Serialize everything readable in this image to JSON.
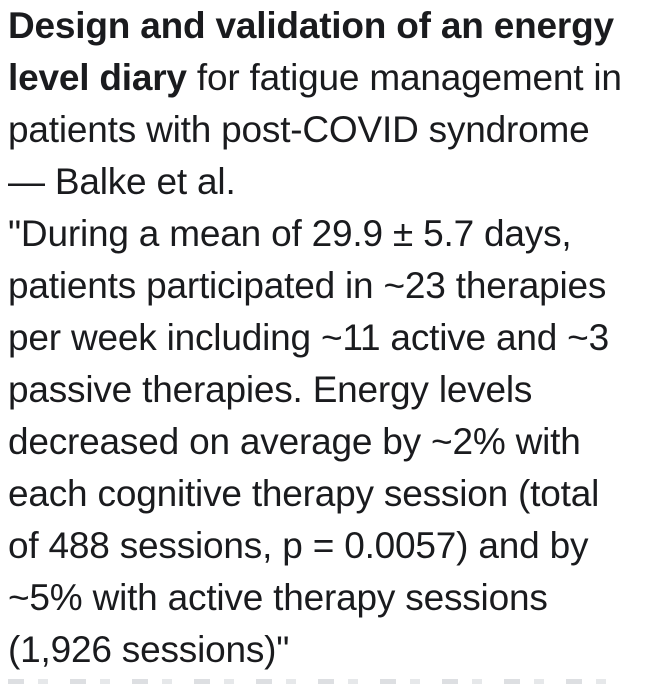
{
  "page": {
    "background_color": "#ffffff",
    "text_color": "#1a1b1e"
  },
  "article": {
    "title_bold": "Design and validation of an energy level diary",
    "title_rest": " for fatigue management in patients with post-COVID syndrome",
    "authors": "— Balke et al.",
    "quote": "\"During a mean of 29.9 ± 5.7 days, patients participated in ~23 therapies per week including ~11 active and ~3 passive therapies. Energy levels decreased on average by ~2% with each cognitive therapy session (total of 488 sessions, p = 0.0057) and by ~5% with active therapy sessions (1,926 sessions)\"",
    "stats": {
      "mean_days": "29.9 ± 5.7",
      "therapies_per_week": "~23",
      "active_per_week": "~11",
      "passive_per_week": "~3",
      "cognitive_energy_change": "~2%",
      "cognitive_sessions_total": "488",
      "p_value": "0.0057",
      "active_energy_change": "~5%",
      "active_sessions_total": "1,926"
    }
  },
  "text_block": {
    "lines": [
      {
        "segments": [
          {
            "text": "Design and validation of an energy",
            "bold": true
          }
        ]
      },
      {
        "segments": [
          {
            "text": "level diary",
            "bold": true
          },
          {
            "text": " for fatigue management in",
            "bold": false
          }
        ]
      },
      {
        "segments": [
          {
            "text": "patients with post-COVID syndrome",
            "bold": false
          }
        ]
      },
      {
        "segments": [
          {
            "text": "— Balke et al.",
            "bold": false
          }
        ]
      },
      {
        "segments": [
          {
            "text": "\"During a mean of 29.9 ± 5.7 days,",
            "bold": false
          }
        ]
      },
      {
        "segments": [
          {
            "text": "patients participated in ~23 therapies",
            "bold": false
          }
        ]
      },
      {
        "segments": [
          {
            "text": "per week including ~11 active and ~3",
            "bold": false
          }
        ]
      },
      {
        "segments": [
          {
            "text": "passive therapies. Energy levels",
            "bold": false
          }
        ]
      },
      {
        "segments": [
          {
            "text": "decreased on average by ~2% with",
            "bold": false
          }
        ]
      },
      {
        "segments": [
          {
            "text": "each cognitive therapy session (total",
            "bold": false
          }
        ]
      },
      {
        "segments": [
          {
            "text": "of 488 sessions, p = 0.0057) and by",
            "bold": false
          }
        ]
      },
      {
        "segments": [
          {
            "text": "~5% with active therapy sessions",
            "bold": false
          }
        ]
      },
      {
        "segments": [
          {
            "text": "(1,926 sessions)\"",
            "bold": false
          }
        ]
      }
    ]
  }
}
